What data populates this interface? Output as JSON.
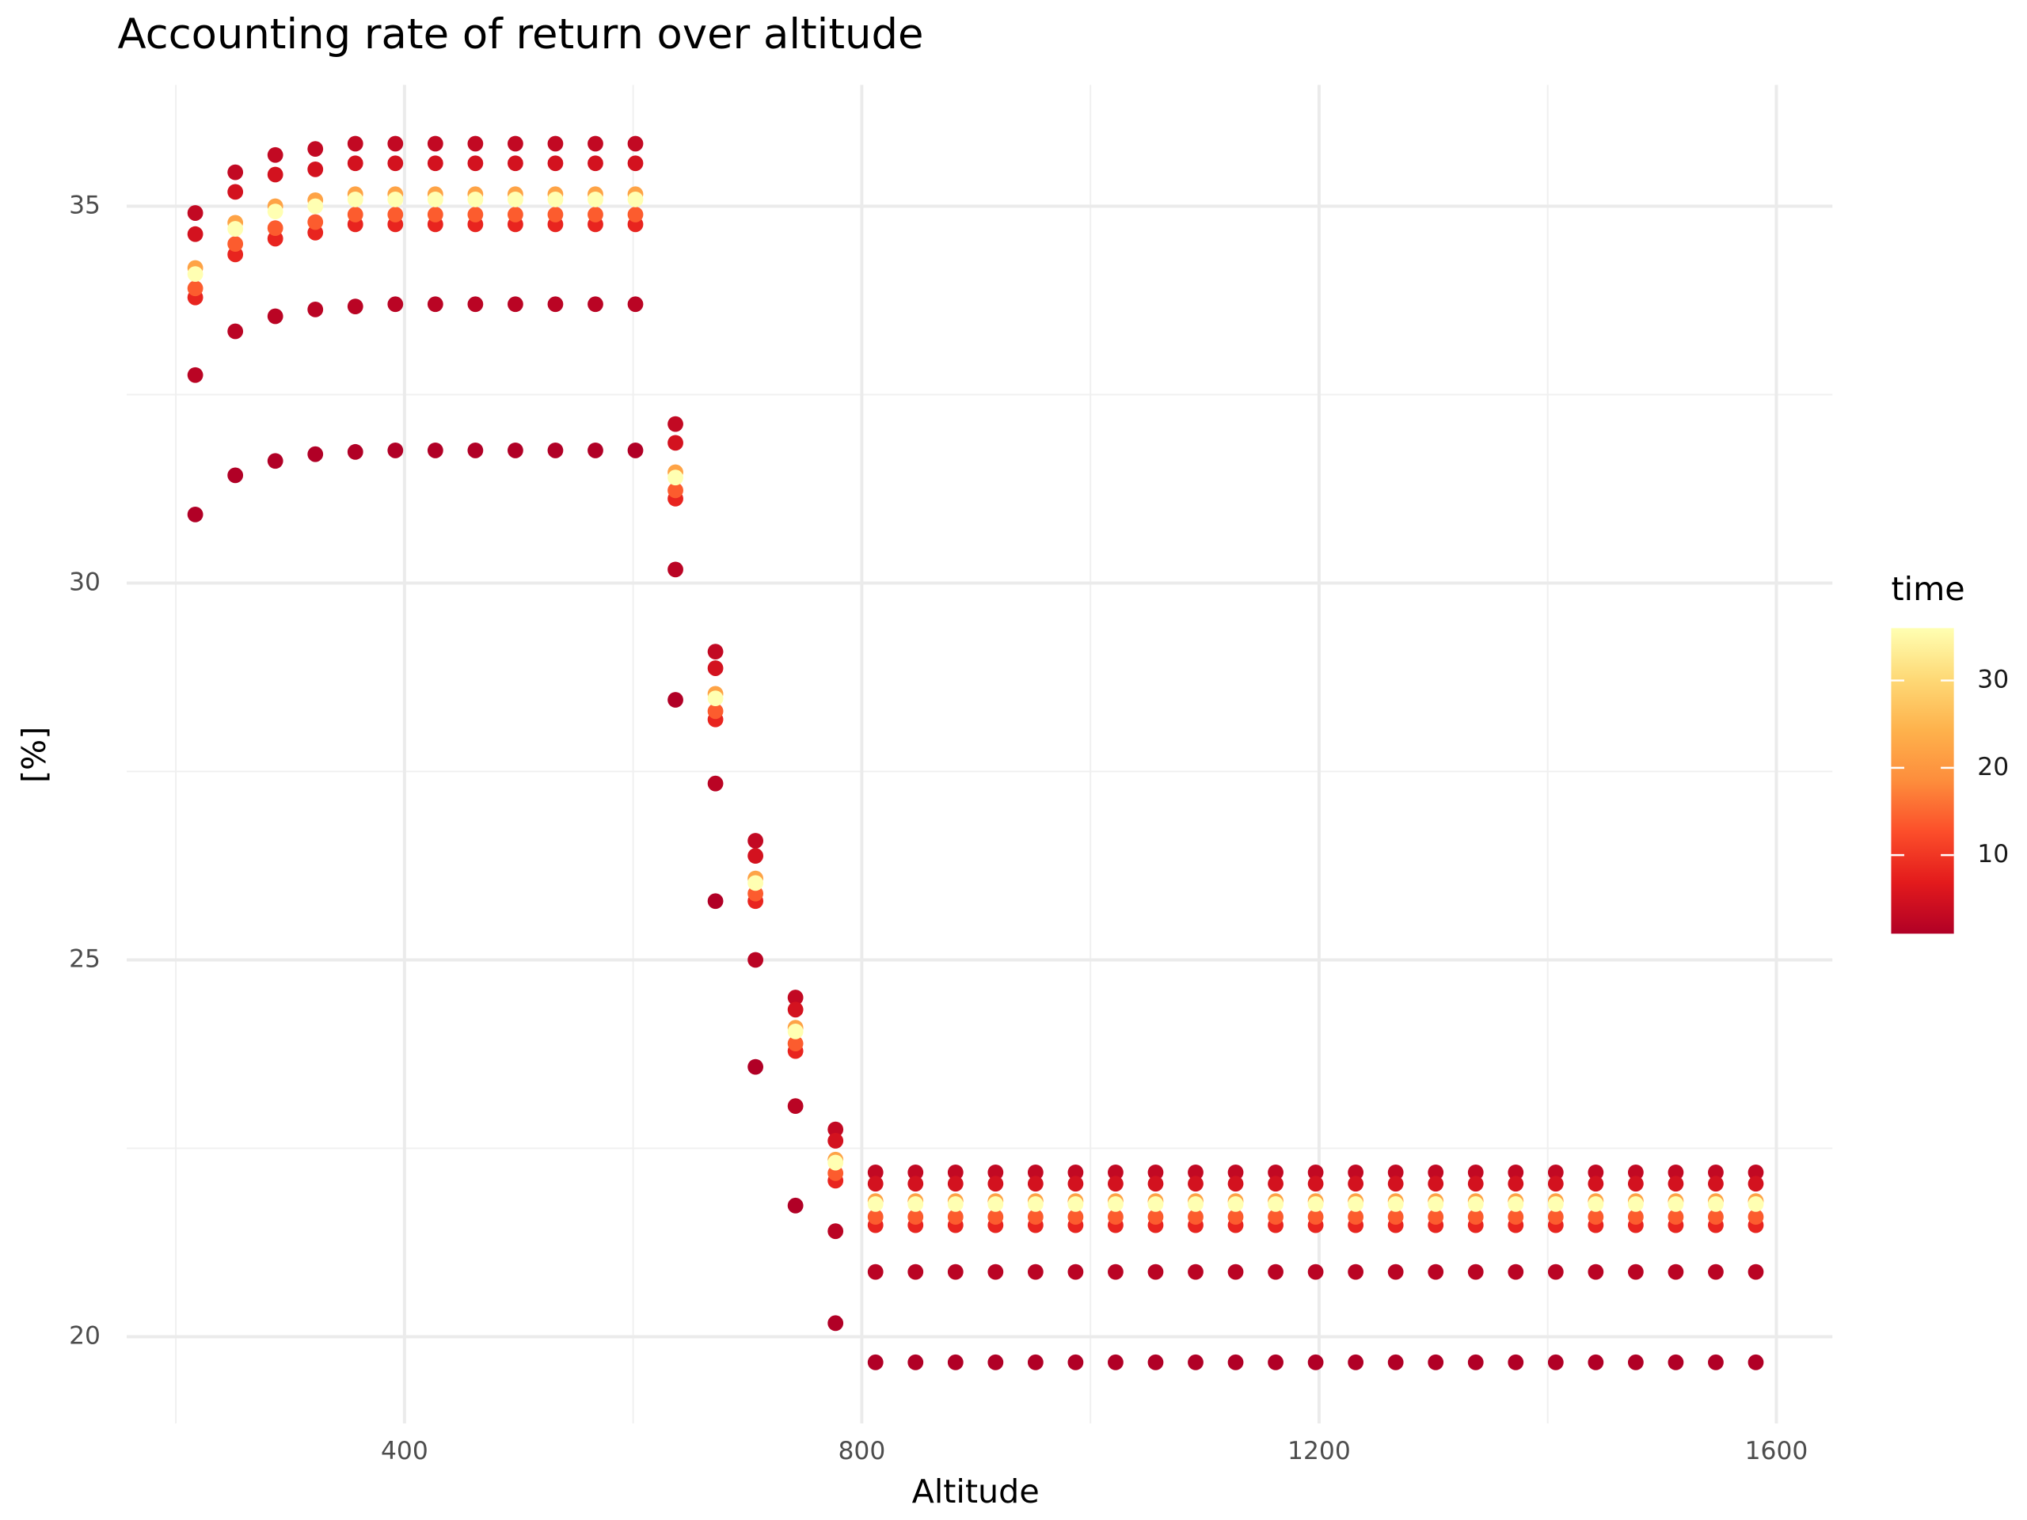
{
  "chart_data": {
    "type": "scatter",
    "title": "Accounting rate of return over altitude",
    "x_label": "Altitude",
    "y_label": "[%]",
    "x": [
      217,
      252,
      287,
      322,
      357,
      392,
      427,
      462,
      497,
      532,
      567,
      602,
      637,
      672,
      707,
      742,
      777,
      812,
      847,
      882,
      917,
      952,
      987,
      1022,
      1057,
      1092,
      1127,
      1162,
      1197,
      1232,
      1267,
      1302,
      1337,
      1372,
      1407,
      1442,
      1477,
      1512,
      1547,
      1582
    ],
    "series": [
      {
        "time": 1,
        "values": [
          30.91,
          31.43,
          31.62,
          31.71,
          31.74,
          31.76,
          31.76,
          31.76,
          31.76,
          31.76,
          31.76,
          31.76,
          28.45,
          25.78,
          23.58,
          21.74,
          20.18,
          19.66,
          19.66,
          19.66,
          19.66,
          19.66,
          19.66,
          19.66,
          19.66,
          19.66,
          19.66,
          19.66,
          19.66,
          19.66,
          19.66,
          19.66,
          19.66,
          19.66,
          19.66,
          19.66,
          19.66,
          19.66,
          19.66,
          19.66
        ]
      },
      {
        "time": 2,
        "values": [
          32.76,
          33.34,
          33.54,
          33.63,
          33.67,
          33.7,
          33.7,
          33.7,
          33.7,
          33.7,
          33.7,
          33.7,
          30.18,
          27.34,
          25.0,
          23.06,
          21.4,
          20.86,
          20.86,
          20.86,
          20.86,
          20.86,
          20.86,
          20.86,
          20.86,
          20.86,
          20.86,
          20.86,
          20.86,
          20.86,
          20.86,
          20.86,
          20.86,
          20.86,
          20.86,
          20.86,
          20.86,
          20.86,
          20.86,
          20.86
        ]
      },
      {
        "time": 3,
        "values": [
          34.91,
          35.45,
          35.68,
          35.76,
          35.83,
          35.83,
          35.83,
          35.83,
          35.83,
          35.83,
          35.83,
          35.83,
          32.11,
          29.09,
          26.58,
          24.5,
          22.75,
          22.18,
          22.18,
          22.18,
          22.18,
          22.18,
          22.18,
          22.18,
          22.18,
          22.18,
          22.18,
          22.18,
          22.18,
          22.18,
          22.18,
          22.18,
          22.18,
          22.18,
          22.18,
          22.18,
          22.18,
          22.18,
          22.18,
          22.18
        ]
      },
      {
        "time": 5,
        "values": [
          34.63,
          35.19,
          35.42,
          35.49,
          35.57,
          35.57,
          35.57,
          35.57,
          35.57,
          35.57,
          35.57,
          35.57,
          31.86,
          28.87,
          26.38,
          24.34,
          22.6,
          22.03,
          22.03,
          22.03,
          22.03,
          22.03,
          22.03,
          22.03,
          22.03,
          22.03,
          22.03,
          22.03,
          22.03,
          22.03,
          22.03,
          22.03,
          22.03,
          22.03,
          22.03,
          22.03,
          22.03,
          22.03,
          22.03,
          22.03
        ]
      },
      {
        "time": 8,
        "values": [
          33.79,
          34.36,
          34.57,
          34.65,
          34.76,
          34.76,
          34.76,
          34.76,
          34.76,
          34.76,
          34.76,
          34.76,
          31.12,
          28.19,
          25.78,
          23.79,
          22.07,
          21.48,
          21.48,
          21.48,
          21.48,
          21.48,
          21.48,
          21.48,
          21.48,
          21.48,
          21.48,
          21.48,
          21.48,
          21.48,
          21.48,
          21.48,
          21.48,
          21.48,
          21.48,
          21.48,
          21.48,
          21.48,
          21.48,
          21.48
        ]
      },
      {
        "time": 14,
        "values": [
          33.91,
          34.5,
          34.71,
          34.79,
          34.89,
          34.89,
          34.89,
          34.89,
          34.89,
          34.89,
          34.89,
          34.89,
          31.23,
          28.3,
          25.88,
          23.89,
          22.17,
          21.59,
          21.59,
          21.59,
          21.59,
          21.59,
          21.59,
          21.59,
          21.59,
          21.59,
          21.59,
          21.59,
          21.59,
          21.59,
          21.59,
          21.59,
          21.59,
          21.59,
          21.59,
          21.59,
          21.59,
          21.59,
          21.59,
          21.59
        ]
      },
      {
        "time": 22,
        "values": [
          34.18,
          34.78,
          35.0,
          35.08,
          35.16,
          35.16,
          35.16,
          35.16,
          35.16,
          35.16,
          35.16,
          35.16,
          31.47,
          28.53,
          26.08,
          24.1,
          22.35,
          21.8,
          21.8,
          21.8,
          21.8,
          21.8,
          21.8,
          21.8,
          21.8,
          21.8,
          21.8,
          21.8,
          21.8,
          21.8,
          21.8,
          21.8,
          21.8,
          21.8,
          21.8,
          21.8,
          21.8,
          21.8,
          21.8,
          21.8
        ]
      },
      {
        "time": 36,
        "values": [
          34.1,
          34.7,
          34.93,
          35.0,
          35.09,
          35.09,
          35.09,
          35.09,
          35.09,
          35.09,
          35.09,
          35.09,
          31.4,
          28.47,
          26.02,
          24.05,
          22.31,
          21.76,
          21.76,
          21.76,
          21.76,
          21.76,
          21.76,
          21.76,
          21.76,
          21.76,
          21.76,
          21.76,
          21.76,
          21.76,
          21.76,
          21.76,
          21.76,
          21.76,
          21.76,
          21.76,
          21.76,
          21.76,
          21.76,
          21.76
        ]
      }
    ],
    "color_scale": {
      "title": "time",
      "lim": [
        1,
        36
      ],
      "ticks": [
        10,
        20,
        30
      ],
      "colors": [
        "#b10026",
        "#e31a1c",
        "#fc4e2a",
        "#fd8d3c",
        "#feb24c",
        "#fed976",
        "#ffffb2"
      ]
    },
    "xlim": [
      157,
      1649
    ],
    "ylim": [
      18.85,
      36.61
    ],
    "xticks": [
      400,
      800,
      1200,
      1600
    ],
    "yticks": [
      20,
      25,
      30,
      35
    ],
    "grid": true
  }
}
